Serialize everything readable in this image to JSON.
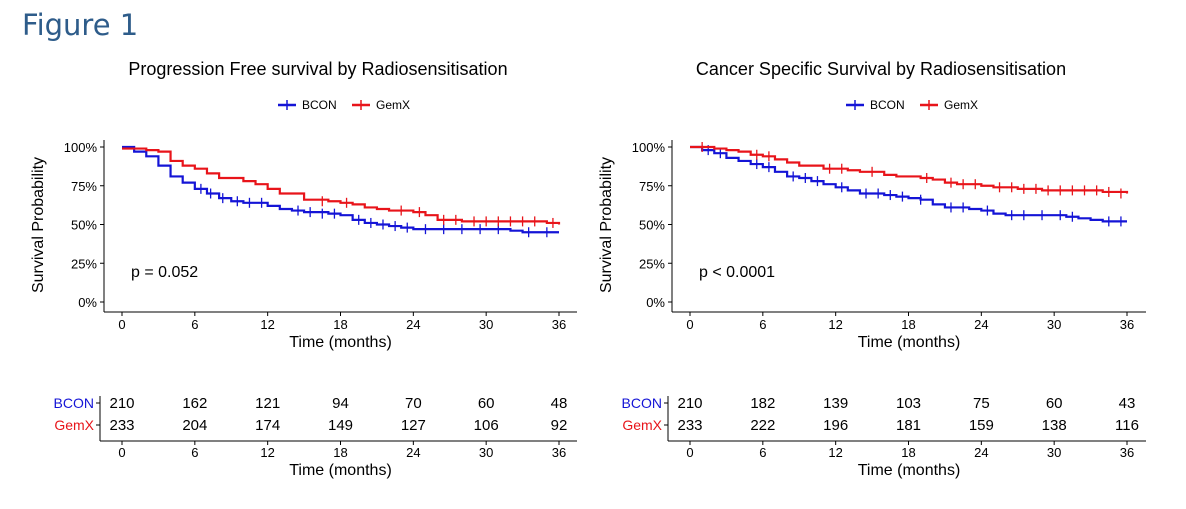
{
  "figure_label": "Figure 1",
  "colors": {
    "BCON": "#1414d6",
    "GemX": "#e8141a",
    "axis": "#000000"
  },
  "chart_data": [
    {
      "type": "line",
      "subtype": "kaplan-meier",
      "title": "Progression Free survival by Radiosensitisation",
      "xlabel": "Time (months)",
      "ylabel": "Survival Probability",
      "xlim": [
        0,
        36
      ],
      "ylim": [
        0,
        1
      ],
      "xticks": [
        "0",
        "6",
        "12",
        "18",
        "24",
        "30",
        "36"
      ],
      "yticks": [
        "0%",
        "25%",
        "50%",
        "75%",
        "100%"
      ],
      "annotation": "p = 0.052",
      "legend_position": "top",
      "series": [
        {
          "name": "BCON",
          "steps": [
            [
              0,
              1.0
            ],
            [
              1,
              0.97
            ],
            [
              2,
              0.94
            ],
            [
              3,
              0.88
            ],
            [
              4,
              0.81
            ],
            [
              5,
              0.77
            ],
            [
              6,
              0.73
            ],
            [
              7,
              0.7
            ],
            [
              8,
              0.67
            ],
            [
              9,
              0.65
            ],
            [
              10,
              0.64
            ],
            [
              12,
              0.62
            ],
            [
              13,
              0.6
            ],
            [
              14,
              0.59
            ],
            [
              15,
              0.58
            ],
            [
              17,
              0.57
            ],
            [
              18,
              0.56
            ],
            [
              19,
              0.53
            ],
            [
              20,
              0.51
            ],
            [
              21,
              0.5
            ],
            [
              22,
              0.49
            ],
            [
              23,
              0.48
            ],
            [
              24,
              0.47
            ],
            [
              30,
              0.47
            ],
            [
              32,
              0.46
            ],
            [
              33,
              0.45
            ],
            [
              36,
              0.45
            ]
          ],
          "censors": [
            [
              6.5,
              0.73
            ],
            [
              7.3,
              0.7
            ],
            [
              8.3,
              0.67
            ],
            [
              9.5,
              0.65
            ],
            [
              10.5,
              0.64
            ],
            [
              11.5,
              0.64
            ],
            [
              14.5,
              0.59
            ],
            [
              15.5,
              0.58
            ],
            [
              16.5,
              0.57
            ],
            [
              17.5,
              0.57
            ],
            [
              19.5,
              0.53
            ],
            [
              20.5,
              0.51
            ],
            [
              21.5,
              0.5
            ],
            [
              22.5,
              0.49
            ],
            [
              23.5,
              0.48
            ],
            [
              25,
              0.47
            ],
            [
              26.5,
              0.47
            ],
            [
              28,
              0.47
            ],
            [
              29.5,
              0.47
            ],
            [
              31,
              0.47
            ],
            [
              33.5,
              0.45
            ],
            [
              35,
              0.45
            ]
          ]
        },
        {
          "name": "GemX",
          "steps": [
            [
              0,
              0.99
            ],
            [
              2,
              0.98
            ],
            [
              3,
              0.97
            ],
            [
              4,
              0.91
            ],
            [
              5,
              0.88
            ],
            [
              6,
              0.86
            ],
            [
              7,
              0.83
            ],
            [
              8,
              0.8
            ],
            [
              10,
              0.78
            ],
            [
              11,
              0.76
            ],
            [
              12,
              0.73
            ],
            [
              13,
              0.7
            ],
            [
              15,
              0.66
            ],
            [
              17,
              0.65
            ],
            [
              18,
              0.64
            ],
            [
              19,
              0.63
            ],
            [
              20,
              0.61
            ],
            [
              21,
              0.6
            ],
            [
              22,
              0.59
            ],
            [
              24,
              0.58
            ],
            [
              25,
              0.56
            ],
            [
              26,
              0.53
            ],
            [
              28,
              0.52
            ],
            [
              35,
              0.51
            ],
            [
              36,
              0.5
            ]
          ],
          "censors": [
            [
              16.5,
              0.65
            ],
            [
              18.5,
              0.64
            ],
            [
              23,
              0.59
            ],
            [
              24.5,
              0.58
            ],
            [
              26.5,
              0.53
            ],
            [
              27.5,
              0.53
            ],
            [
              29,
              0.52
            ],
            [
              30,
              0.52
            ],
            [
              31,
              0.52
            ],
            [
              32,
              0.52
            ],
            [
              33,
              0.52
            ],
            [
              34,
              0.52
            ],
            [
              35.5,
              0.51
            ]
          ]
        }
      ],
      "risk_table": {
        "xlabel": "Time (months)",
        "times": [
          "0",
          "6",
          "12",
          "18",
          "24",
          "30",
          "36"
        ],
        "rows": [
          {
            "name": "BCON",
            "values": [
              "210",
              "162",
              "121",
              "94",
              "70",
              "60",
              "48"
            ]
          },
          {
            "name": "GemX",
            "values": [
              "233",
              "204",
              "174",
              "149",
              "127",
              "106",
              "92"
            ]
          }
        ]
      }
    },
    {
      "type": "line",
      "subtype": "kaplan-meier",
      "title": "Cancer Specific Survival by Radiosensitisation",
      "xlabel": "Time (months)",
      "ylabel": "Survival Probability",
      "xlim": [
        0,
        36
      ],
      "ylim": [
        0,
        1
      ],
      "xticks": [
        "0",
        "6",
        "12",
        "18",
        "24",
        "30",
        "36"
      ],
      "yticks": [
        "0%",
        "25%",
        "50%",
        "75%",
        "100%"
      ],
      "annotation": "p < 0.0001",
      "legend_position": "top",
      "series": [
        {
          "name": "BCON",
          "steps": [
            [
              0,
              1.0
            ],
            [
              1,
              0.98
            ],
            [
              2,
              0.96
            ],
            [
              3,
              0.93
            ],
            [
              4,
              0.91
            ],
            [
              5,
              0.89
            ],
            [
              6,
              0.87
            ],
            [
              7,
              0.84
            ],
            [
              8,
              0.81
            ],
            [
              9,
              0.8
            ],
            [
              10,
              0.78
            ],
            [
              11,
              0.76
            ],
            [
              12,
              0.74
            ],
            [
              13,
              0.72
            ],
            [
              14,
              0.7
            ],
            [
              16,
              0.69
            ],
            [
              17,
              0.68
            ],
            [
              18,
              0.67
            ],
            [
              19,
              0.66
            ],
            [
              20,
              0.63
            ],
            [
              21,
              0.61
            ],
            [
              23,
              0.6
            ],
            [
              24,
              0.59
            ],
            [
              25,
              0.57
            ],
            [
              26,
              0.56
            ],
            [
              30,
              0.56
            ],
            [
              31,
              0.55
            ],
            [
              32,
              0.54
            ],
            [
              33,
              0.53
            ],
            [
              34,
              0.52
            ],
            [
              36,
              0.52
            ]
          ],
          "censors": [
            [
              1.5,
              0.98
            ],
            [
              2.5,
              0.96
            ],
            [
              5.5,
              0.89
            ],
            [
              6.5,
              0.87
            ],
            [
              8.5,
              0.81
            ],
            [
              9.5,
              0.8
            ],
            [
              10.5,
              0.78
            ],
            [
              12.5,
              0.74
            ],
            [
              14.5,
              0.7
            ],
            [
              15.5,
              0.7
            ],
            [
              16.5,
              0.69
            ],
            [
              17.5,
              0.68
            ],
            [
              19,
              0.66
            ],
            [
              21.5,
              0.61
            ],
            [
              22.5,
              0.61
            ],
            [
              24.5,
              0.59
            ],
            [
              26.5,
              0.56
            ],
            [
              27.5,
              0.56
            ],
            [
              29,
              0.56
            ],
            [
              30.5,
              0.56
            ],
            [
              31.5,
              0.55
            ],
            [
              34.5,
              0.52
            ],
            [
              35.5,
              0.52
            ]
          ]
        },
        {
          "name": "GemX",
          "steps": [
            [
              0,
              1.0
            ],
            [
              2,
              0.99
            ],
            [
              3,
              0.98
            ],
            [
              4,
              0.97
            ],
            [
              5,
              0.95
            ],
            [
              6,
              0.94
            ],
            [
              7,
              0.92
            ],
            [
              8,
              0.9
            ],
            [
              9,
              0.88
            ],
            [
              11,
              0.86
            ],
            [
              13,
              0.85
            ],
            [
              14,
              0.84
            ],
            [
              16,
              0.82
            ],
            [
              17,
              0.81
            ],
            [
              19,
              0.8
            ],
            [
              20,
              0.79
            ],
            [
              21,
              0.77
            ],
            [
              22,
              0.76
            ],
            [
              24,
              0.75
            ],
            [
              25,
              0.74
            ],
            [
              27,
              0.73
            ],
            [
              29,
              0.72
            ],
            [
              34,
              0.71
            ],
            [
              36,
              0.7
            ]
          ],
          "censors": [
            [
              1,
              1.0
            ],
            [
              5.5,
              0.95
            ],
            [
              6.5,
              0.94
            ],
            [
              11.5,
              0.86
            ],
            [
              12.5,
              0.86
            ],
            [
              15,
              0.84
            ],
            [
              19.5,
              0.8
            ],
            [
              21.5,
              0.77
            ],
            [
              22.5,
              0.76
            ],
            [
              23.5,
              0.76
            ],
            [
              25.5,
              0.74
            ],
            [
              26.5,
              0.74
            ],
            [
              27.5,
              0.73
            ],
            [
              28.5,
              0.73
            ],
            [
              29.5,
              0.72
            ],
            [
              30.5,
              0.72
            ],
            [
              31.5,
              0.72
            ],
            [
              32.5,
              0.72
            ],
            [
              33.5,
              0.72
            ],
            [
              34.5,
              0.71
            ],
            [
              35.5,
              0.7
            ]
          ]
        }
      ],
      "risk_table": {
        "xlabel": "Time (months)",
        "times": [
          "0",
          "6",
          "12",
          "18",
          "24",
          "30",
          "36"
        ],
        "rows": [
          {
            "name": "BCON",
            "values": [
              "210",
              "182",
              "139",
              "103",
              "75",
              "60",
              "43"
            ]
          },
          {
            "name": "GemX",
            "values": [
              "233",
              "222",
              "196",
              "181",
              "159",
              "138",
              "116"
            ]
          }
        ]
      }
    }
  ]
}
